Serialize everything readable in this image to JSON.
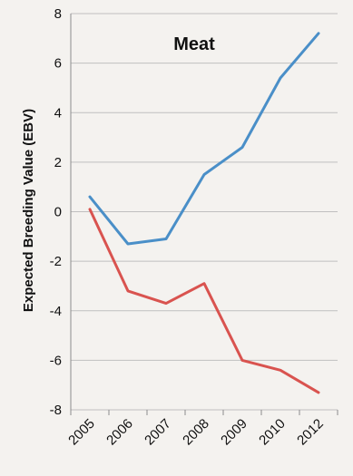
{
  "chart_data": {
    "type": "line",
    "title": "Meat",
    "xlabel": "",
    "ylabel": "Expected Breeding Value (EBV)",
    "categories": [
      "2005",
      "2006",
      "2007",
      "2008",
      "2009",
      "2010",
      "2012"
    ],
    "ylim": [
      -8,
      8
    ],
    "yticks": [
      8,
      6,
      4,
      2,
      0,
      -2,
      -4,
      -6,
      -8
    ],
    "grid": "horizontal",
    "series": [
      {
        "color": "#4a8fc8",
        "values": [
          0.6,
          -1.3,
          -1.1,
          1.5,
          2.6,
          5.4,
          7.2
        ]
      },
      {
        "color": "#d9534f",
        "values": [
          0.1,
          -3.2,
          -3.7,
          -2.9,
          -6.0,
          -6.4,
          -7.3
        ]
      }
    ],
    "colors": {
      "background": "#f4f2ef",
      "grid": "#bfbfbf",
      "axis": "#8c8c8c"
    }
  }
}
